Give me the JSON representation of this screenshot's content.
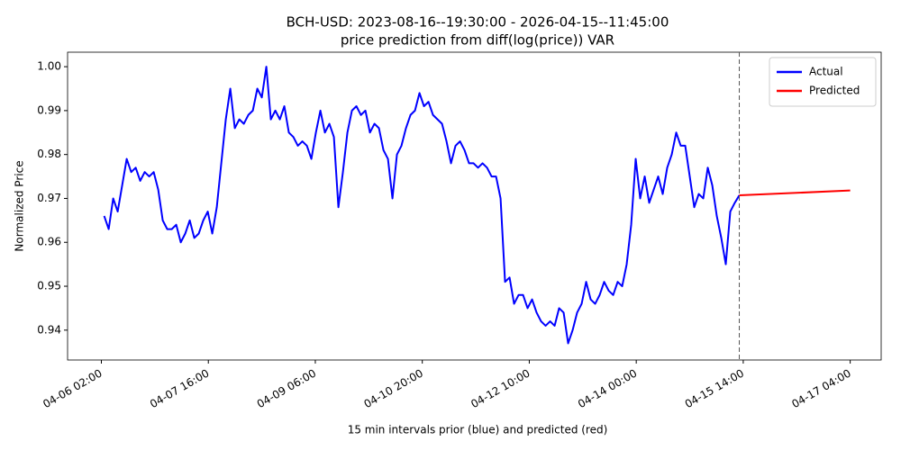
{
  "chart_data": {
    "type": "line",
    "title": "BCH-USD: 2023-08-16--19:30:00 - 2026-04-15--11:45:00",
    "subtitle": "price prediction from diff(log(price)) VAR",
    "x_label": "15 min intervals prior (blue) and predicted (red)",
    "y_label": "Normalized Price",
    "xlim": [
      "04-05 14:00",
      "04-17 15:00"
    ],
    "xticks": [
      "04-06 02:00",
      "04-07 16:00",
      "04-09 06:00",
      "04-10 20:00",
      "04-12 10:00",
      "04-14 00:00",
      "04-15 14:00",
      "04-17 04:00"
    ],
    "ylim": [
      0.9332,
      1.0033
    ],
    "yticks": [
      0.94,
      0.95,
      0.96,
      0.97,
      0.98,
      0.99,
      {
        "value": 1,
        "label": "1.00"
      }
    ],
    "grid": false,
    "legend": "upper right",
    "series": [
      {
        "name": "Actual",
        "color": "#0000ff",
        "x": [
          "04-06 03:00",
          "04-06 04:36",
          "04-06 06:12",
          "04-06 07:48",
          "04-06 09:24",
          "04-06 11:00",
          "04-06 12:36",
          "04-06 14:12",
          "04-06 15:48",
          "04-06 17:24",
          "04-06 19:00",
          "04-06 20:36",
          "04-06 22:12",
          "04-06 23:48",
          "04-07 01:24",
          "04-07 03:00",
          "04-07 04:36",
          "04-07 06:12",
          "04-07 07:48",
          "04-07 09:24",
          "04-07 11:00",
          "04-07 12:36",
          "04-07 14:12",
          "04-07 15:48",
          "04-07 17:24",
          "04-07 19:00",
          "04-07 20:36",
          "04-07 22:12",
          "04-07 23:48",
          "04-08 01:24",
          "04-08 03:00",
          "04-08 04:36",
          "04-08 06:12",
          "04-08 07:48",
          "04-08 09:24",
          "04-08 11:00",
          "04-08 12:36",
          "04-08 14:12",
          "04-08 15:48",
          "04-08 17:24",
          "04-08 19:00",
          "04-08 20:36",
          "04-08 22:12",
          "04-08 23:48",
          "04-09 01:24",
          "04-09 03:00",
          "04-09 04:36",
          "04-09 06:12",
          "04-09 07:48",
          "04-09 09:24",
          "04-09 11:00",
          "04-09 12:36",
          "04-09 14:12",
          "04-09 15:48",
          "04-09 17:24",
          "04-09 19:00",
          "04-09 20:36",
          "04-09 22:12",
          "04-09 23:48",
          "04-10 01:24",
          "04-10 03:00",
          "04-10 04:36",
          "04-10 06:12",
          "04-10 07:48",
          "04-10 09:24",
          "04-10 11:00",
          "04-10 12:36",
          "04-10 14:12",
          "04-10 15:48",
          "04-10 17:24",
          "04-10 19:00",
          "04-10 20:36",
          "04-10 22:12",
          "04-10 23:48",
          "04-11 01:24",
          "04-11 03:00",
          "04-11 04:36",
          "04-11 06:12",
          "04-11 07:48",
          "04-11 09:24",
          "04-11 11:00",
          "04-11 12:36",
          "04-11 14:12",
          "04-11 15:48",
          "04-11 17:24",
          "04-11 19:00",
          "04-11 20:36",
          "04-11 22:12",
          "04-11 23:48",
          "04-12 01:24",
          "04-12 03:00",
          "04-12 04:36",
          "04-12 06:12",
          "04-12 07:48",
          "04-12 09:24",
          "04-12 11:00",
          "04-12 12:36",
          "04-12 14:12",
          "04-12 15:48",
          "04-12 17:24",
          "04-12 19:00",
          "04-12 20:36",
          "04-12 22:12",
          "04-12 23:48",
          "04-13 01:24",
          "04-13 03:00",
          "04-13 04:36",
          "04-13 06:12",
          "04-13 07:48",
          "04-13 09:24",
          "04-13 11:00",
          "04-13 12:36",
          "04-13 14:12",
          "04-13 15:48",
          "04-13 17:24",
          "04-13 19:00",
          "04-13 20:36",
          "04-13 22:12",
          "04-13 23:48",
          "04-14 01:24",
          "04-14 03:00",
          "04-14 04:36",
          "04-14 06:12",
          "04-14 07:48",
          "04-14 09:24",
          "04-14 11:00",
          "04-14 12:36",
          "04-14 14:12",
          "04-14 15:48",
          "04-14 17:24",
          "04-14 19:00",
          "04-14 20:36",
          "04-14 22:12",
          "04-14 23:48",
          "04-15 01:24",
          "04-15 03:00",
          "04-15 04:36",
          "04-15 06:12",
          "04-15 07:48",
          "04-15 09:24",
          "04-15 11:00",
          "04-15 12:36"
        ],
        "values": [
          0.966,
          0.963,
          0.97,
          0.967,
          0.973,
          0.979,
          0.976,
          0.977,
          0.974,
          0.976,
          0.975,
          0.976,
          0.972,
          0.965,
          0.963,
          0.963,
          0.964,
          0.96,
          0.962,
          0.965,
          0.961,
          0.962,
          0.965,
          0.967,
          0.962,
          0.968,
          0.978,
          0.988,
          0.995,
          0.986,
          0.988,
          0.987,
          0.989,
          0.99,
          0.995,
          0.993,
          1.0,
          0.988,
          0.99,
          0.988,
          0.991,
          0.985,
          0.984,
          0.982,
          0.983,
          0.982,
          0.979,
          0.985,
          0.99,
          0.985,
          0.987,
          0.984,
          0.968,
          0.976,
          0.985,
          0.99,
          0.991,
          0.989,
          0.99,
          0.985,
          0.987,
          0.986,
          0.981,
          0.979,
          0.97,
          0.98,
          0.982,
          0.986,
          0.989,
          0.99,
          0.994,
          0.991,
          0.992,
          0.989,
          0.988,
          0.987,
          0.983,
          0.978,
          0.982,
          0.983,
          0.981,
          0.978,
          0.978,
          0.977,
          0.978,
          0.977,
          0.975,
          0.975,
          0.97,
          0.951,
          0.952,
          0.946,
          0.948,
          0.948,
          0.945,
          0.947,
          0.944,
          0.942,
          0.941,
          0.942,
          0.941,
          0.945,
          0.944,
          0.937,
          0.94,
          0.944,
          0.946,
          0.951,
          0.947,
          0.946,
          0.948,
          0.951,
          0.949,
          0.948,
          0.951,
          0.95,
          0.955,
          0.964,
          0.979,
          0.97,
          0.975,
          0.969,
          0.972,
          0.975,
          0.971,
          0.977,
          0.98,
          0.985,
          0.982,
          0.982,
          0.975,
          0.968,
          0.971,
          0.97,
          0.977,
          0.973,
          0.966,
          0.961,
          0.955,
          0.967,
          0.969,
          0.9707
        ]
      },
      {
        "name": "Predicted",
        "color": "#ff0000",
        "x": [
          "04-15 12:36",
          "04-17 04:00"
        ],
        "values": [
          0.9707,
          0.9718
        ]
      }
    ]
  }
}
